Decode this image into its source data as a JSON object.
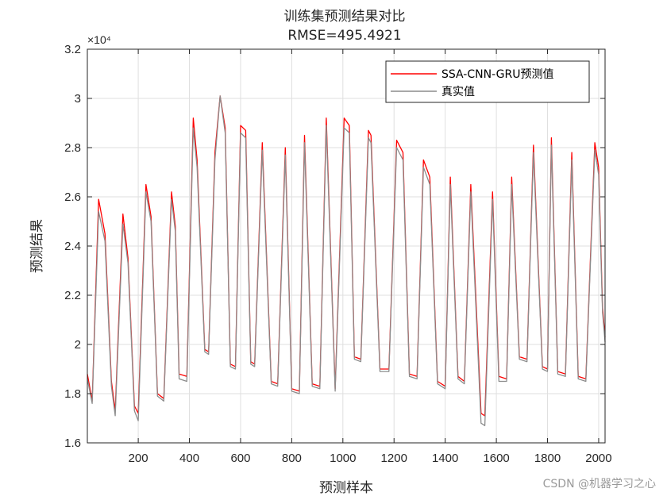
{
  "title": "训练集预测结果对比",
  "subtitle": "RMSE=495.4921",
  "watermark": "CSDN @机器学习之心",
  "colors": {
    "predicted": "#ff0000",
    "actual": "#8c8c8c",
    "grid": "#dfdfdf",
    "axis": "#262626"
  },
  "chart_data": {
    "type": "line",
    "title": "训练集预测结果对比",
    "subtitle": "RMSE=495.4921",
    "xlabel": "预测样本",
    "ylabel": "预测结果",
    "xlim": [
      1,
      2025
    ],
    "ylim": [
      16000,
      32000
    ],
    "y_exponent_label": "×10⁴",
    "x_ticks": [
      200,
      400,
      600,
      800,
      1000,
      1200,
      1400,
      1600,
      1800,
      2000
    ],
    "x_tick_labels": [
      "200",
      "400",
      "600",
      "800",
      "1000",
      "1200",
      "1400",
      "1600",
      "1800",
      "2000"
    ],
    "y_ticks": [
      16000,
      18000,
      20000,
      22000,
      24000,
      26000,
      28000,
      30000,
      32000
    ],
    "y_tick_labels": [
      "1.6",
      "1.8",
      "2",
      "2.2",
      "2.4",
      "2.6",
      "2.8",
      "3",
      "3.2"
    ],
    "grid": true,
    "legend_position": "top-right",
    "x": [
      1,
      20,
      45,
      70,
      95,
      110,
      140,
      160,
      185,
      200,
      230,
      250,
      275,
      300,
      330,
      345,
      360,
      390,
      415,
      430,
      460,
      475,
      500,
      520,
      540,
      560,
      580,
      600,
      620,
      640,
      655,
      685,
      720,
      745,
      775,
      800,
      830,
      850,
      880,
      910,
      935,
      970,
      1005,
      1025,
      1045,
      1070,
      1100,
      1110,
      1145,
      1180,
      1210,
      1235,
      1260,
      1290,
      1315,
      1340,
      1370,
      1400,
      1420,
      1450,
      1475,
      1500,
      1540,
      1555,
      1585,
      1610,
      1640,
      1660,
      1690,
      1720,
      1745,
      1780,
      1800,
      1815,
      1840,
      1870,
      1895,
      1920,
      1950,
      1985,
      2000,
      2015,
      2025
    ],
    "series": [
      {
        "name": "SSA-CNN-GRU预测值",
        "color": "#ff0000",
        "values": [
          18800,
          17700,
          25900,
          24500,
          18500,
          17300,
          25300,
          23500,
          17500,
          17200,
          26500,
          25200,
          18000,
          17800,
          26200,
          24800,
          18800,
          18700,
          29200,
          27500,
          19800,
          19700,
          27800,
          30100,
          28800,
          19200,
          19100,
          28900,
          28700,
          19300,
          19200,
          28200,
          18500,
          18400,
          28000,
          18200,
          18100,
          28500,
          18400,
          18300,
          29200,
          18200,
          29200,
          28900,
          19500,
          19400,
          28700,
          28500,
          19000,
          19000,
          28300,
          27800,
          18800,
          18700,
          27500,
          26800,
          18500,
          18300,
          26800,
          18700,
          18500,
          26500,
          17200,
          17100,
          26200,
          18700,
          18600,
          26800,
          19500,
          19400,
          28100,
          19100,
          19000,
          28400,
          18900,
          18800,
          27800,
          18700,
          18600,
          28200,
          27200,
          21500,
          20300
        ]
      },
      {
        "name": "真实值",
        "color": "#8c8c8c",
        "values": [
          18600,
          17600,
          25400,
          24200,
          18300,
          17100,
          24900,
          23300,
          17300,
          16900,
          26200,
          25000,
          17900,
          17700,
          25900,
          24600,
          18600,
          18500,
          28800,
          27200,
          19700,
          19600,
          27500,
          30100,
          28600,
          19100,
          19000,
          28600,
          28400,
          19200,
          19100,
          27900,
          18400,
          18300,
          27700,
          18100,
          18000,
          28200,
          18300,
          18200,
          28900,
          18100,
          28800,
          28600,
          19400,
          19300,
          28400,
          28200,
          18900,
          18900,
          28000,
          27500,
          18700,
          18600,
          27200,
          26500,
          18400,
          18200,
          26500,
          18600,
          18400,
          26200,
          16800,
          16700,
          25900,
          18500,
          18500,
          26500,
          19400,
          19300,
          27800,
          19000,
          18900,
          28100,
          18800,
          18700,
          27500,
          18600,
          18500,
          27900,
          26900,
          21300,
          20100
        ]
      }
    ]
  }
}
